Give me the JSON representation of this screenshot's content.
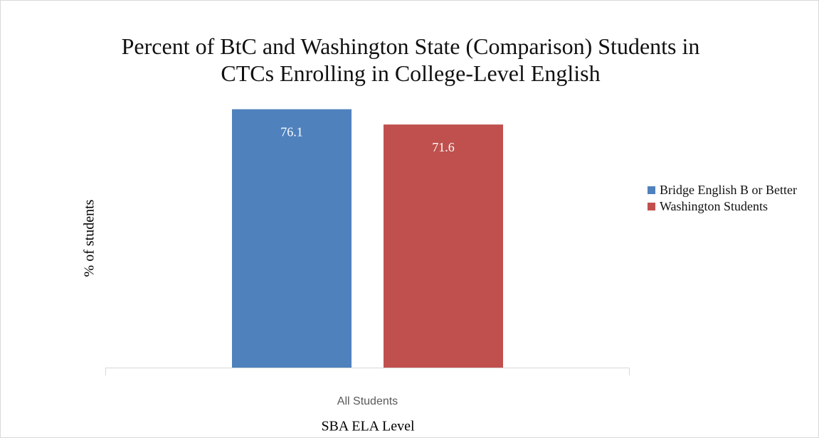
{
  "chart_data": {
    "type": "bar",
    "title": "Percent of BtC and Washington State (Comparison) Students in CTCs Enrolling in College-Level English",
    "x_label": "SBA ELA Level",
    "y_label": "% of students",
    "categories": [
      "All Students"
    ],
    "series": [
      {
        "name": "Bridge English B or Better",
        "color": "#4f81bd",
        "values": [
          76.1
        ]
      },
      {
        "name": "Washington Students",
        "color": "#c0504d",
        "values": [
          71.6
        ]
      }
    ],
    "ylim": [
      0,
      80
    ],
    "legend": "right"
  }
}
